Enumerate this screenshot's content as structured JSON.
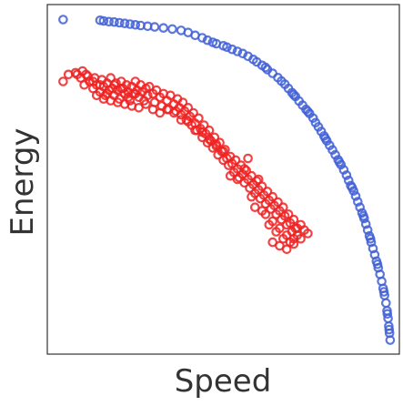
{
  "chart_data": {
    "type": "scatter",
    "xlabel": "Speed",
    "ylabel": "Energy",
    "xlim": [
      0,
      1
    ],
    "ylim": [
      0,
      1
    ],
    "grid": false,
    "legend": "none",
    "series": [
      {
        "color": "#3f5fd6",
        "marker": "hollow-circle",
        "points": [
          [
            0.045,
            0.957
          ],
          [
            0.15,
            0.955
          ],
          [
            0.16,
            0.953
          ],
          [
            0.175,
            0.951
          ],
          [
            0.19,
            0.95
          ],
          [
            0.205,
            0.948
          ],
          [
            0.22,
            0.946
          ],
          [
            0.235,
            0.944
          ],
          [
            0.25,
            0.942
          ],
          [
            0.265,
            0.94
          ],
          [
            0.285,
            0.938
          ],
          [
            0.305,
            0.936
          ],
          [
            0.33,
            0.933
          ],
          [
            0.355,
            0.93
          ],
          [
            0.38,
            0.926
          ],
          [
            0.4,
            0.92
          ],
          [
            0.42,
            0.912
          ],
          [
            0.44,
            0.905
          ],
          [
            0.455,
            0.898
          ],
          [
            0.47,
            0.892
          ],
          [
            0.48,
            0.888
          ],
          [
            0.5,
            0.882
          ],
          [
            0.51,
            0.878
          ],
          [
            0.525,
            0.872
          ],
          [
            0.54,
            0.866
          ],
          [
            0.555,
            0.86
          ],
          [
            0.57,
            0.852
          ],
          [
            0.585,
            0.843
          ],
          [
            0.595,
            0.836
          ],
          [
            0.61,
            0.826
          ],
          [
            0.625,
            0.814
          ],
          [
            0.64,
            0.803
          ],
          [
            0.655,
            0.791
          ],
          [
            0.665,
            0.781
          ],
          [
            0.675,
            0.772
          ],
          [
            0.685,
            0.76
          ],
          [
            0.695,
            0.748
          ],
          [
            0.705,
            0.737
          ],
          [
            0.715,
            0.724
          ],
          [
            0.725,
            0.712
          ],
          [
            0.735,
            0.7
          ],
          [
            0.745,
            0.688
          ],
          [
            0.755,
            0.675
          ],
          [
            0.762,
            0.662
          ],
          [
            0.77,
            0.65
          ],
          [
            0.778,
            0.637
          ],
          [
            0.786,
            0.624
          ],
          [
            0.794,
            0.61
          ],
          [
            0.802,
            0.597
          ],
          [
            0.81,
            0.584
          ],
          [
            0.818,
            0.57
          ],
          [
            0.826,
            0.556
          ],
          [
            0.834,
            0.542
          ],
          [
            0.842,
            0.527
          ],
          [
            0.85,
            0.512
          ],
          [
            0.856,
            0.497
          ],
          [
            0.862,
            0.482
          ],
          [
            0.87,
            0.467
          ],
          [
            0.876,
            0.452
          ],
          [
            0.882,
            0.436
          ],
          [
            0.888,
            0.42
          ],
          [
            0.894,
            0.404
          ],
          [
            0.9,
            0.388
          ],
          [
            0.905,
            0.372
          ],
          [
            0.91,
            0.355
          ],
          [
            0.915,
            0.338
          ],
          [
            0.92,
            0.32
          ],
          [
            0.925,
            0.302
          ],
          [
            0.93,
            0.284
          ],
          [
            0.935,
            0.266
          ],
          [
            0.94,
            0.247
          ],
          [
            0.945,
            0.228
          ],
          [
            0.95,
            0.208
          ],
          [
            0.954,
            0.188
          ],
          [
            0.958,
            0.168
          ],
          [
            0.962,
            0.146
          ],
          [
            0.965,
            0.124
          ],
          [
            0.968,
            0.102
          ],
          [
            0.97,
            0.08
          ],
          [
            0.972,
            0.06
          ],
          [
            0.974,
            0.04
          ],
          [
            0.62,
            0.82
          ],
          [
            0.7,
            0.742
          ],
          [
            0.74,
            0.694
          ],
          [
            0.79,
            0.617
          ],
          [
            0.83,
            0.549
          ],
          [
            0.866,
            0.476
          ],
          [
            0.898,
            0.395
          ],
          [
            0.918,
            0.33
          ],
          [
            0.938,
            0.257
          ],
          [
            0.956,
            0.178
          ],
          [
            0.966,
            0.115
          ],
          [
            0.971,
            0.07
          ]
        ]
      },
      {
        "color": "#ee2222",
        "marker": "hollow-circle",
        "points": [
          [
            0.045,
            0.78
          ],
          [
            0.085,
            0.8
          ],
          [
            0.1,
            0.81
          ],
          [
            0.105,
            0.77
          ],
          [
            0.115,
            0.795
          ],
          [
            0.12,
            0.78
          ],
          [
            0.13,
            0.76
          ],
          [
            0.135,
            0.79
          ],
          [
            0.14,
            0.77
          ],
          [
            0.15,
            0.75
          ],
          [
            0.155,
            0.785
          ],
          [
            0.16,
            0.765
          ],
          [
            0.165,
            0.74
          ],
          [
            0.17,
            0.775
          ],
          [
            0.175,
            0.755
          ],
          [
            0.18,
            0.79
          ],
          [
            0.185,
            0.76
          ],
          [
            0.19,
            0.74
          ],
          [
            0.195,
            0.775
          ],
          [
            0.2,
            0.755
          ],
          [
            0.205,
            0.73
          ],
          [
            0.21,
            0.78
          ],
          [
            0.215,
            0.76
          ],
          [
            0.22,
            0.745
          ],
          [
            0.225,
            0.77
          ],
          [
            0.23,
            0.75
          ],
          [
            0.235,
            0.725
          ],
          [
            0.24,
            0.765
          ],
          [
            0.245,
            0.745
          ],
          [
            0.25,
            0.78
          ],
          [
            0.255,
            0.755
          ],
          [
            0.26,
            0.735
          ],
          [
            0.265,
            0.77
          ],
          [
            0.27,
            0.75
          ],
          [
            0.275,
            0.725
          ],
          [
            0.28,
            0.76
          ],
          [
            0.285,
            0.74
          ],
          [
            0.29,
            0.765
          ],
          [
            0.3,
            0.745
          ],
          [
            0.305,
            0.72
          ],
          [
            0.31,
            0.755
          ],
          [
            0.32,
            0.735
          ],
          [
            0.325,
            0.71
          ],
          [
            0.33,
            0.745
          ],
          [
            0.34,
            0.725
          ],
          [
            0.345,
            0.7
          ],
          [
            0.35,
            0.74
          ],
          [
            0.36,
            0.715
          ],
          [
            0.365,
            0.695
          ],
          [
            0.37,
            0.73
          ],
          [
            0.375,
            0.705
          ],
          [
            0.38,
            0.685
          ],
          [
            0.385,
            0.72
          ],
          [
            0.39,
            0.695
          ],
          [
            0.395,
            0.67
          ],
          [
            0.4,
            0.705
          ],
          [
            0.405,
            0.68
          ],
          [
            0.41,
            0.655
          ],
          [
            0.415,
            0.69
          ],
          [
            0.42,
            0.66
          ],
          [
            0.425,
            0.64
          ],
          [
            0.43,
            0.675
          ],
          [
            0.435,
            0.645
          ],
          [
            0.44,
            0.62
          ],
          [
            0.445,
            0.655
          ],
          [
            0.45,
            0.63
          ],
          [
            0.455,
            0.605
          ],
          [
            0.46,
            0.64
          ],
          [
            0.465,
            0.61
          ],
          [
            0.47,
            0.59
          ],
          [
            0.475,
            0.62
          ],
          [
            0.48,
            0.595
          ],
          [
            0.485,
            0.57
          ],
          [
            0.49,
            0.605
          ],
          [
            0.495,
            0.58
          ],
          [
            0.5,
            0.555
          ],
          [
            0.505,
            0.585
          ],
          [
            0.51,
            0.56
          ],
          [
            0.515,
            0.54
          ],
          [
            0.52,
            0.565
          ],
          [
            0.525,
            0.545
          ],
          [
            0.53,
            0.52
          ],
          [
            0.535,
            0.555
          ],
          [
            0.54,
            0.53
          ],
          [
            0.545,
            0.505
          ],
          [
            0.55,
            0.54
          ],
          [
            0.555,
            0.515
          ],
          [
            0.56,
            0.49
          ],
          [
            0.565,
            0.525
          ],
          [
            0.57,
            0.5
          ],
          [
            0.575,
            0.475
          ],
          [
            0.58,
            0.51
          ],
          [
            0.585,
            0.485
          ],
          [
            0.59,
            0.46
          ],
          [
            0.595,
            0.495
          ],
          [
            0.6,
            0.47
          ],
          [
            0.605,
            0.445
          ],
          [
            0.61,
            0.48
          ],
          [
            0.615,
            0.455
          ],
          [
            0.62,
            0.43
          ],
          [
            0.625,
            0.465
          ],
          [
            0.63,
            0.44
          ],
          [
            0.635,
            0.415
          ],
          [
            0.64,
            0.45
          ],
          [
            0.645,
            0.425
          ],
          [
            0.65,
            0.4
          ],
          [
            0.655,
            0.435
          ],
          [
            0.66,
            0.41
          ],
          [
            0.665,
            0.385
          ],
          [
            0.67,
            0.42
          ],
          [
            0.675,
            0.395
          ],
          [
            0.68,
            0.37
          ],
          [
            0.685,
            0.4
          ],
          [
            0.69,
            0.375
          ],
          [
            0.695,
            0.35
          ],
          [
            0.7,
            0.385
          ],
          [
            0.705,
            0.36
          ],
          [
            0.71,
            0.34
          ],
          [
            0.52,
            0.51
          ],
          [
            0.54,
            0.5
          ],
          [
            0.56,
            0.53
          ],
          [
            0.58,
            0.45
          ],
          [
            0.6,
            0.5
          ],
          [
            0.62,
            0.4
          ],
          [
            0.64,
            0.38
          ],
          [
            0.66,
            0.36
          ],
          [
            0.68,
            0.34
          ],
          [
            0.7,
            0.33
          ],
          [
            0.57,
            0.56
          ],
          [
            0.59,
            0.42
          ],
          [
            0.61,
            0.41
          ],
          [
            0.63,
            0.37
          ],
          [
            0.65,
            0.35
          ],
          [
            0.67,
            0.33
          ],
          [
            0.69,
            0.32
          ],
          [
            0.71,
            0.36
          ],
          [
            0.72,
            0.37
          ],
          [
            0.73,
            0.355
          ],
          [
            0.74,
            0.345
          ],
          [
            0.64,
            0.32
          ],
          [
            0.66,
            0.31
          ],
          [
            0.68,
            0.3
          ],
          [
            0.7,
            0.315
          ],
          [
            0.72,
            0.33
          ],
          [
            0.25,
            0.745
          ],
          [
            0.23,
            0.735
          ],
          [
            0.21,
            0.76
          ],
          [
            0.19,
            0.77
          ],
          [
            0.17,
            0.745
          ],
          [
            0.15,
            0.77
          ],
          [
            0.13,
            0.78
          ],
          [
            0.11,
            0.8
          ],
          [
            0.095,
            0.79
          ],
          [
            0.08,
            0.805
          ],
          [
            0.06,
            0.8
          ],
          [
            0.14,
            0.74
          ],
          [
            0.16,
            0.73
          ],
          [
            0.18,
            0.725
          ],
          [
            0.2,
            0.72
          ],
          [
            0.22,
            0.715
          ],
          [
            0.24,
            0.71
          ],
          [
            0.26,
            0.705
          ],
          [
            0.28,
            0.715
          ],
          [
            0.3,
            0.7
          ],
          [
            0.32,
            0.69
          ],
          [
            0.34,
            0.7
          ],
          [
            0.36,
            0.69
          ],
          [
            0.38,
            0.67
          ],
          [
            0.4,
            0.665
          ],
          [
            0.42,
            0.64
          ],
          [
            0.44,
            0.635
          ],
          [
            0.46,
            0.615
          ],
          [
            0.48,
            0.6
          ],
          [
            0.5,
            0.58
          ]
        ]
      }
    ]
  }
}
